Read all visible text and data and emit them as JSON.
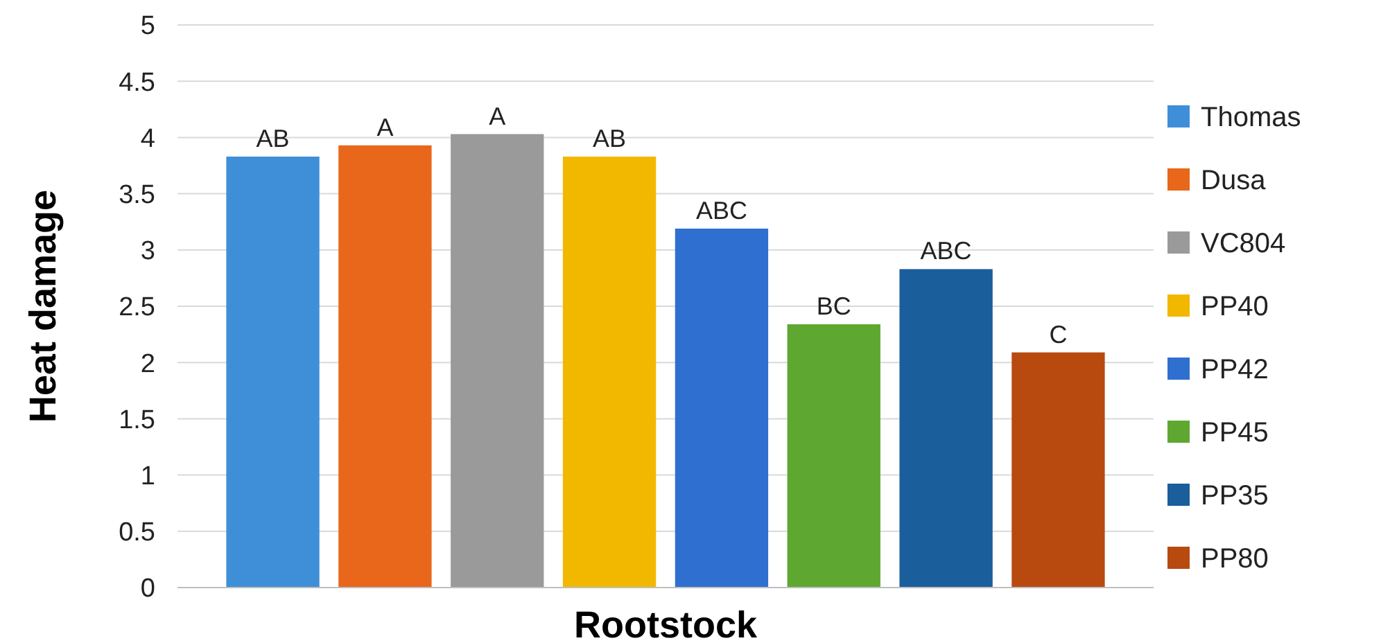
{
  "chart_data": {
    "type": "bar",
    "xlabel": "Rootstock",
    "ylabel": "Heat damage",
    "categories": [
      null
    ],
    "series": [
      {
        "name": "Thomas",
        "color": "#3f8fd8",
        "values": [
          3.83
        ],
        "value_labels": [
          "AB"
        ]
      },
      {
        "name": "Dusa",
        "color": "#e8671a",
        "values": [
          3.93
        ],
        "value_labels": [
          "A"
        ]
      },
      {
        "name": "VC804",
        "color": "#9a9a9a",
        "values": [
          4.03
        ],
        "value_labels": [
          "A"
        ]
      },
      {
        "name": "PP40",
        "color": "#f2b800",
        "values": [
          3.83
        ],
        "value_labels": [
          "AB"
        ]
      },
      {
        "name": "PP42",
        "color": "#2f6fcf",
        "values": [
          3.19
        ],
        "value_labels": [
          "ABC"
        ]
      },
      {
        "name": "PP45",
        "color": "#5ea832",
        "values": [
          2.34
        ],
        "value_labels": [
          "BC"
        ]
      },
      {
        "name": "PP35",
        "color": "#1a5e9c",
        "values": [
          2.83
        ],
        "value_labels": [
          "ABC"
        ]
      },
      {
        "name": "PP80",
        "color": "#b84a10",
        "values": [
          2.09
        ],
        "value_labels": [
          "C"
        ]
      }
    ],
    "ylim": [
      0,
      5
    ],
    "yticks": [
      0,
      0.5,
      1,
      1.5,
      2,
      2.5,
      3,
      3.5,
      4,
      4.5,
      5
    ],
    "grid": "y",
    "legend": "right",
    "tick_labels": "y"
  }
}
